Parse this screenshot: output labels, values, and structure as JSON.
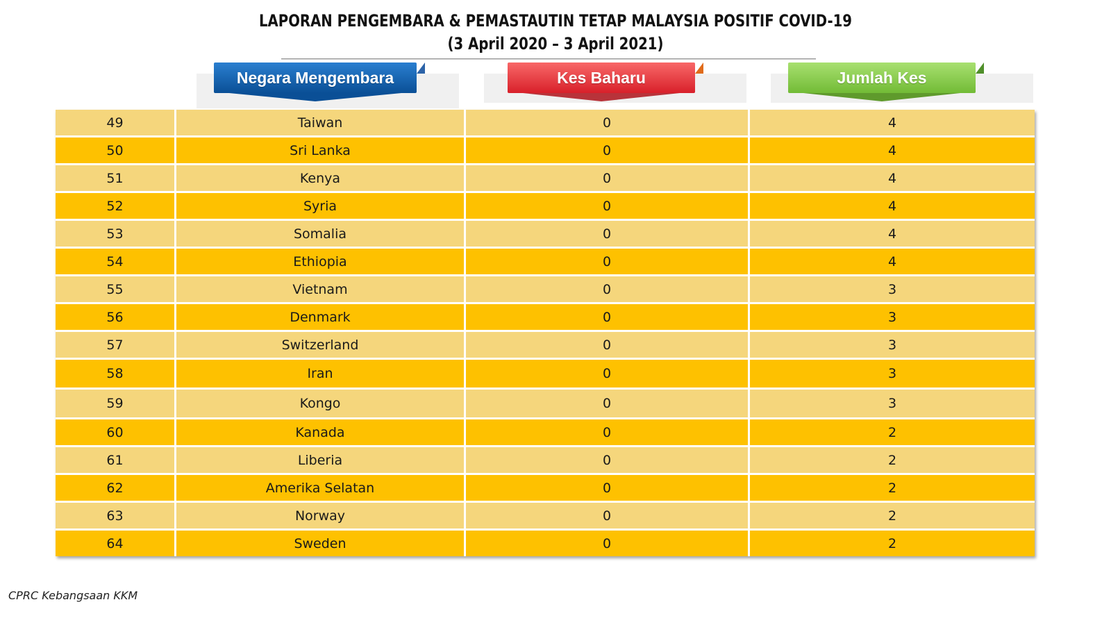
{
  "title": {
    "line1": "LAPORAN PENGEMBARA & PEMASTAUTIN TETAP MALAYSIA POSITIF COVID-19",
    "line2": "(3 April 2020 – 3 April 2021)"
  },
  "headers": {
    "country": "Negara Mengembara",
    "new_cases": "Kes Baharu",
    "total_cases": "Jumlah Kes"
  },
  "colors": {
    "row_light": "#f5d67c",
    "row_dark": "#fec100",
    "header_blue": "#0a4f96",
    "header_red": "#d8202a",
    "header_green": "#72bb36"
  },
  "chart_data": {
    "type": "table",
    "columns": [
      "",
      "Negara Mengembara",
      "Kes Baharu",
      "Jumlah Kes"
    ],
    "rows": [
      {
        "rank": "49",
        "country": "Taiwan",
        "new": "0",
        "total": "4"
      },
      {
        "rank": "50",
        "country": "Sri Lanka",
        "new": "0",
        "total": "4"
      },
      {
        "rank": "51",
        "country": "Kenya",
        "new": "0",
        "total": "4"
      },
      {
        "rank": "52",
        "country": "Syria",
        "new": "0",
        "total": "4"
      },
      {
        "rank": "53",
        "country": "Somalia",
        "new": "0",
        "total": "4"
      },
      {
        "rank": "54",
        "country": "Ethiopia",
        "new": "0",
        "total": "4"
      },
      {
        "rank": "55",
        "country": "Vietnam",
        "new": "0",
        "total": "3"
      },
      {
        "rank": "56",
        "country": "Denmark",
        "new": "0",
        "total": "3"
      },
      {
        "rank": "57",
        "country": "Switzerland",
        "new": "0",
        "total": "3"
      },
      {
        "rank": "58",
        "country": "Iran",
        "new": "0",
        "total": "3"
      },
      {
        "rank": "59",
        "country": "Kongo",
        "new": "0",
        "total": "3"
      },
      {
        "rank": "60",
        "country": "Kanada",
        "new": "0",
        "total": "2"
      },
      {
        "rank": "61",
        "country": "Liberia",
        "new": "0",
        "total": "2"
      },
      {
        "rank": "62",
        "country": "Amerika Selatan",
        "new": "0",
        "total": "2"
      },
      {
        "rank": "63",
        "country": "Norway",
        "new": "0",
        "total": "2"
      },
      {
        "rank": "64",
        "country": "Sweden",
        "new": "0",
        "total": "2"
      }
    ]
  },
  "footer": "CPRC Kebangsaan KKM"
}
